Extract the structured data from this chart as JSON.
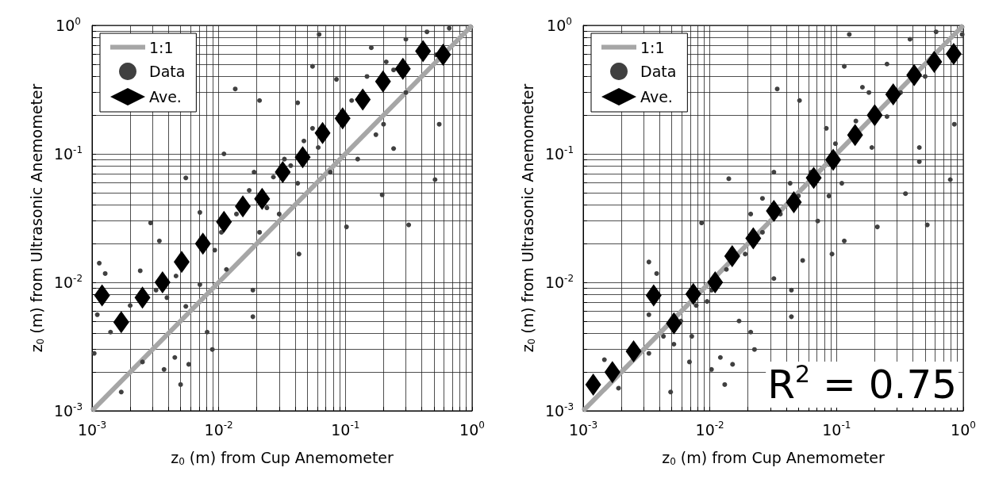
{
  "chart_data": [
    {
      "type": "scatter",
      "xlabel": "z$_{0}$ (m) from Cup Anemometer",
      "ylabel": "z$_{0}$ (m) from Ultrasonic Anemometer",
      "log": "xy",
      "grid": true,
      "legend": "top left",
      "xlim": [
        0.001,
        1
      ],
      "ylim": [
        0.001,
        1
      ],
      "xticks": [
        {
          "value": 0.001,
          "label": "10$^{-3}$"
        },
        {
          "value": 0.01,
          "label": "10$^{-2}$"
        },
        {
          "value": 0.1,
          "label": "10$^{-1}$"
        },
        {
          "value": 1,
          "label": "10$^{0}$"
        }
      ],
      "yticks": [
        {
          "value": 0.001,
          "label": "10$^{-3}$"
        },
        {
          "value": 0.01,
          "label": "10$^{-2}$"
        },
        {
          "value": 0.1,
          "label": "10$^{-1}$"
        },
        {
          "value": 1,
          "label": "10$^{0}$"
        }
      ],
      "series": [
        {
          "name": "1:1",
          "type": "line",
          "marker": "none",
          "color": "#a6a6a6",
          "x": [
            0.001,
            1
          ],
          "values": [
            0.001,
            1
          ]
        },
        {
          "name": "Data",
          "type": "scatter",
          "marker": "circle",
          "color": "#404040",
          "x": [
            0.062,
            0.0135,
            0.021,
            0.0029,
            0.0034,
            0.00104,
            0.0017,
            0.005,
            0.0037,
            0.0058,
            0.0025,
            0.0045,
            0.0089,
            0.0081,
            0.0186,
            0.0186,
            0.043,
            0.102,
            0.316,
            0.51,
            0.55,
            0.195,
            0.2,
            0.24,
            0.66,
            0.44,
            0.16,
            0.055,
            0.011,
            0.0055,
            0.00114,
            0.00127,
            0.0011,
            0.0014,
            0.0024,
            0.0039,
            0.0055,
            0.0071,
            0.0115,
            0.0071,
            0.0138,
            0.0174,
            0.027,
            0.03,
            0.021,
            0.042,
            0.047,
            0.061,
            0.085,
            0.112,
            0.125,
            0.174,
            0.21,
            0.3,
            0.3,
            0.148,
            0.042,
            0.033,
            0.0105,
            0.0093,
            0.0046,
            0.0032,
            0.002,
            0.024,
            0.019,
            0.037,
            0.055,
            0.076,
            0.24,
            0.52
          ],
          "values": [
            0.85,
            0.32,
            0.26,
            0.029,
            0.021,
            0.0028,
            0.0014,
            0.0016,
            0.0021,
            0.0023,
            0.0024,
            0.0026,
            0.003,
            0.0041,
            0.0054,
            0.0087,
            0.0166,
            0.027,
            0.028,
            0.063,
            0.17,
            0.048,
            0.17,
            0.11,
            0.95,
            0.89,
            0.67,
            0.48,
            0.1,
            0.065,
            0.0141,
            0.0117,
            0.0056,
            0.0041,
            0.0123,
            0.0076,
            0.0065,
            0.0096,
            0.0126,
            0.035,
            0.034,
            0.052,
            0.066,
            0.034,
            0.0245,
            0.059,
            0.126,
            0.112,
            0.38,
            0.26,
            0.091,
            0.141,
            0.52,
            0.3,
            0.78,
            0.4,
            0.25,
            0.091,
            0.0245,
            0.0178,
            0.0112,
            0.0087,
            0.0066,
            0.038,
            0.072,
            0.081,
            0.158,
            0.072,
            0.45,
            0.59
          ]
        },
        {
          "name": "Ave.",
          "type": "scatter",
          "marker": "diamond",
          "color": "#000000",
          "x": [
            0.0012,
            0.0017,
            0.0025,
            0.0036,
            0.0051,
            0.0075,
            0.011,
            0.0155,
            0.022,
            0.032,
            0.046,
            0.066,
            0.095,
            0.137,
            0.198,
            0.284,
            0.41,
            0.59
          ],
          "values": [
            0.0079,
            0.0049,
            0.0076,
            0.01,
            0.0144,
            0.02,
            0.0296,
            0.039,
            0.0447,
            0.072,
            0.094,
            0.145,
            0.189,
            0.265,
            0.366,
            0.46,
            0.63,
            0.59
          ]
        }
      ]
    },
    {
      "type": "scatter",
      "xlabel": "z$_{0}$ (m) from Cup Anemometer",
      "ylabel": "z$_{0}$ (m) from Ultrasonic Anemometer",
      "log": "xy",
      "grid": true,
      "legend": "top left",
      "annotations": [
        "R$^{2}$ = 0.75"
      ],
      "xlim": [
        0.001,
        1
      ],
      "ylim": [
        0.001,
        1
      ],
      "xticks": [
        {
          "value": 0.001,
          "label": "10$^{-3}$"
        },
        {
          "value": 0.01,
          "label": "10$^{-2}$"
        },
        {
          "value": 0.1,
          "label": "10$^{-1}$"
        },
        {
          "value": 1,
          "label": "10$^{0}$"
        }
      ],
      "yticks": [
        {
          "value": 0.001,
          "label": "10$^{-3}$"
        },
        {
          "value": 0.01,
          "label": "10$^{-2}$"
        },
        {
          "value": 0.1,
          "label": "10$^{-1}$"
        },
        {
          "value": 1,
          "label": "10$^{0}$"
        }
      ],
      "series": [
        {
          "name": "1:1",
          "type": "line",
          "marker": "none",
          "color": "#a6a6a6",
          "x": [
            0.001,
            1
          ],
          "values": [
            0.001,
            1
          ]
        },
        {
          "name": "Data",
          "type": "scatter",
          "marker": "circle",
          "color": "#404040",
          "x": [
            0.126,
            0.034,
            0.051,
            0.85,
            0.79,
            0.52,
            0.21,
            0.115,
            0.092,
            0.0086,
            0.0141,
            0.0033,
            0.0038,
            0.0033,
            0.00147,
            0.0019,
            0.0049,
            0.0069,
            0.0131,
            0.0103,
            0.0151,
            0.0121,
            0.0225,
            0.021,
            0.044,
            0.044,
            0.0052,
            0.0072,
            0.0033,
            0.0095,
            0.017,
            0.032,
            0.054,
            0.45,
            0.45,
            0.35,
            0.38,
            0.61,
            0.98,
            0.115,
            0.16,
            0.25,
            0.142,
            0.098,
            0.063,
            0.05,
            0.036,
            0.026,
            0.019,
            0.0135,
            0.0103,
            0.0078,
            0.0059,
            0.0043,
            0.087,
            0.11,
            0.071,
            0.043,
            0.032,
            0.021,
            0.026,
            0.19,
            0.25,
            0.32,
            0.5,
            0.18,
            0.083
          ],
          "values": [
            0.85,
            0.32,
            0.26,
            0.17,
            0.063,
            0.028,
            0.027,
            0.021,
            0.0166,
            0.029,
            0.064,
            0.0144,
            0.0117,
            0.0056,
            0.0025,
            0.0015,
            0.0014,
            0.0024,
            0.0016,
            0.0021,
            0.0023,
            0.0026,
            0.003,
            0.0041,
            0.0054,
            0.0087,
            0.0033,
            0.0038,
            0.0028,
            0.0071,
            0.005,
            0.0107,
            0.0148,
            0.112,
            0.087,
            0.049,
            0.78,
            0.89,
            0.85,
            0.48,
            0.33,
            0.5,
            0.18,
            0.12,
            0.072,
            0.047,
            0.034,
            0.0245,
            0.0166,
            0.0126,
            0.0087,
            0.0066,
            0.005,
            0.0038,
            0.047,
            0.059,
            0.03,
            0.059,
            0.072,
            0.034,
            0.045,
            0.112,
            0.195,
            0.3,
            0.4,
            0.3,
            0.158
          ]
        },
        {
          "name": "Ave.",
          "type": "scatter",
          "marker": "diamond",
          "color": "#000000",
          "x": [
            0.0012,
            0.0017,
            0.0025,
            0.0036,
            0.0052,
            0.0074,
            0.011,
            0.015,
            0.022,
            0.032,
            0.046,
            0.066,
            0.094,
            0.14,
            0.2,
            0.28,
            0.41,
            0.59,
            0.84
          ],
          "values": [
            0.0016,
            0.002,
            0.0029,
            0.0079,
            0.0048,
            0.0081,
            0.01,
            0.016,
            0.022,
            0.036,
            0.042,
            0.065,
            0.09,
            0.14,
            0.2,
            0.29,
            0.41,
            0.52,
            0.6
          ]
        }
      ]
    }
  ]
}
